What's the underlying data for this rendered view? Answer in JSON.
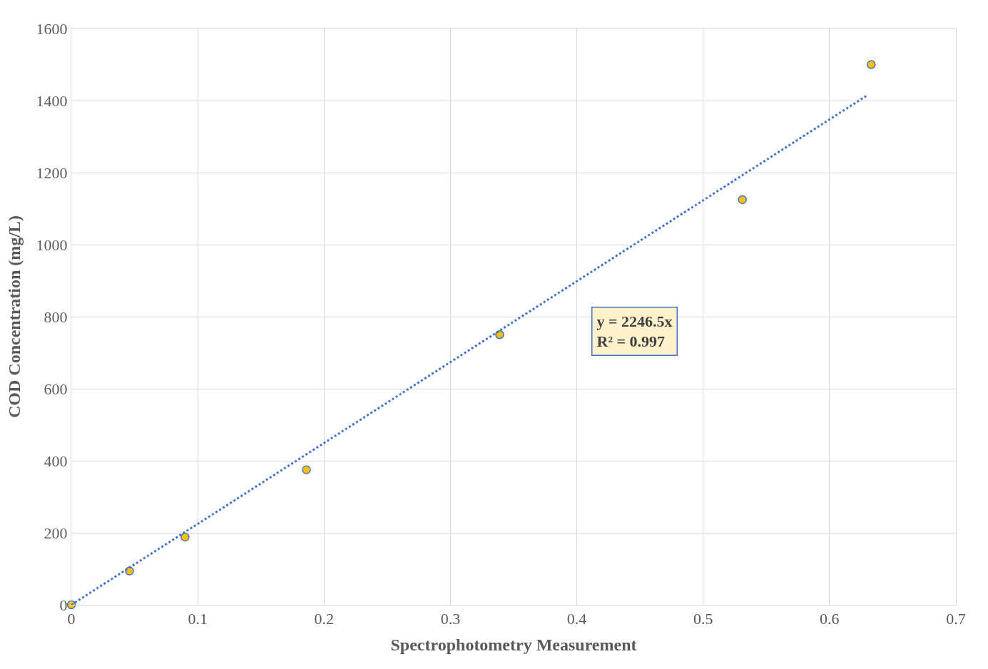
{
  "chart_data": {
    "type": "scatter",
    "xlabel": "Spectrophotometry Measurement",
    "ylabel": "COD Concentration (mg/L)",
    "series": [
      {
        "color": "#ffc000",
        "marker": "circle",
        "x": [
          0,
          0.046,
          0.09,
          0.186,
          0.339,
          0.531,
          0.633
        ],
        "values": [
          0,
          94,
          188,
          375,
          750,
          1125,
          1500
        ]
      },
      {
        "type": "line",
        "color": "#4472c4",
        "line_style": "dotted",
        "x": [
          0,
          0.63
        ],
        "values": [
          0,
          1415
        ]
      }
    ],
    "xlim": [
      0,
      0.7
    ],
    "xticks": [
      0,
      0.1,
      0.2,
      0.3,
      0.4,
      0.5,
      0.6,
      0.7
    ],
    "ylim": [
      0,
      1600
    ],
    "yticks": [
      0,
      200,
      400,
      600,
      800,
      1000,
      1200,
      1400,
      1600
    ],
    "grid": true,
    "annotations": [
      "y = 2246.5x\nR² = 0.997"
    ]
  }
}
